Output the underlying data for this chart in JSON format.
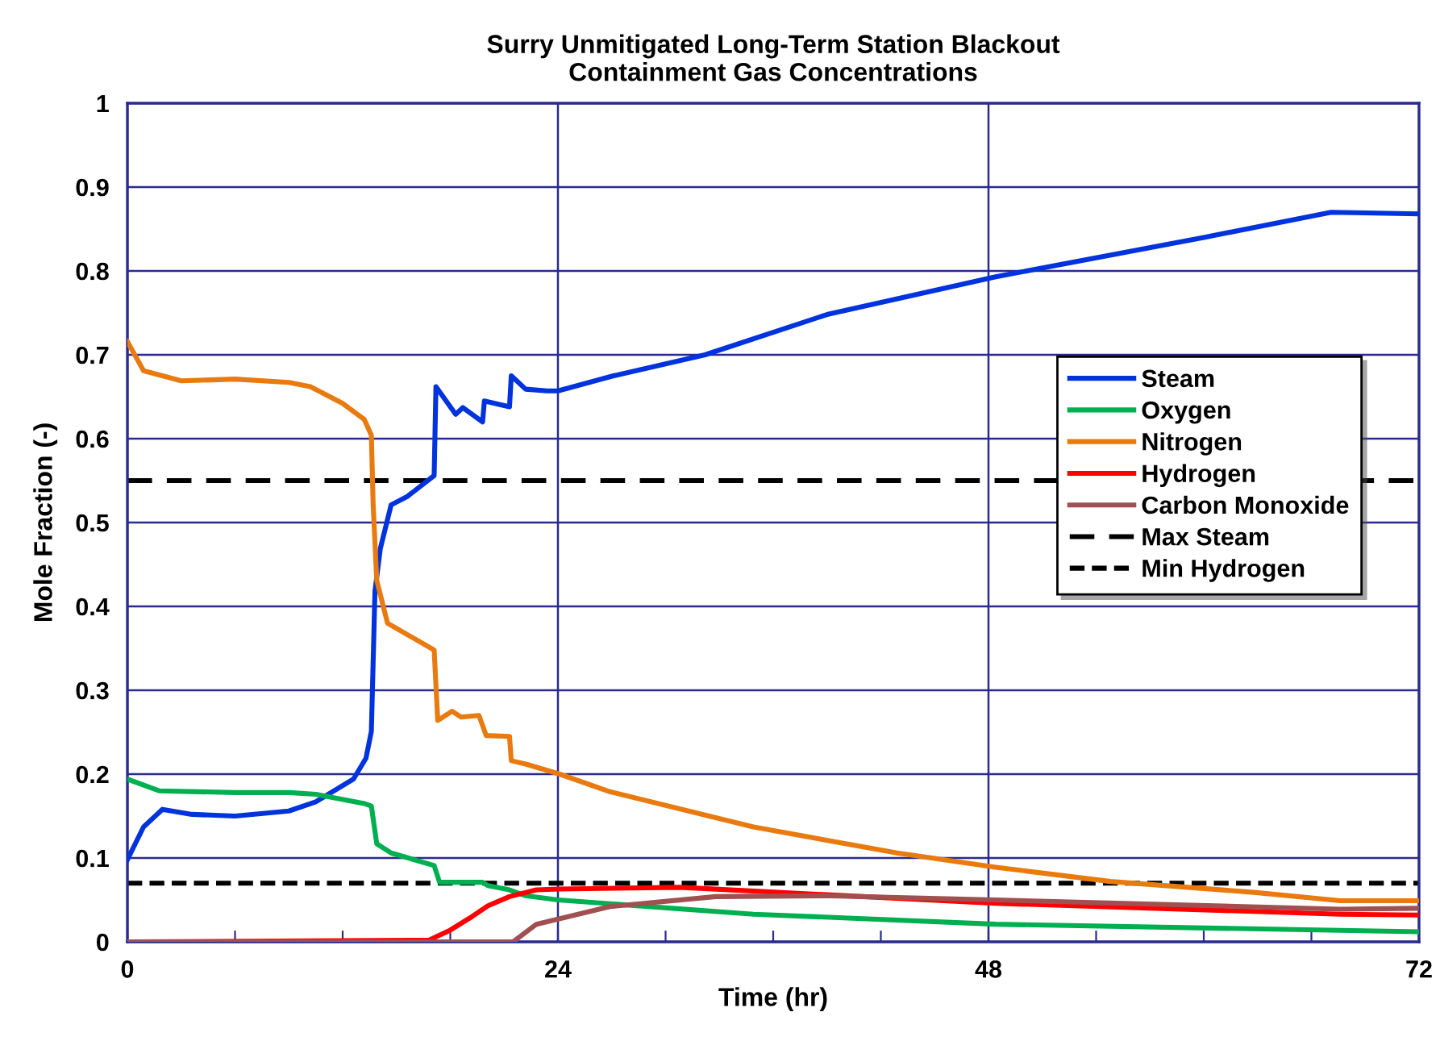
{
  "chart_data": {
    "type": "line",
    "title": "Surry Unmitigated Long-Term Station Blackout\nContainment Gas Concentrations",
    "xlabel": "Time (hr)",
    "ylabel": "Mole Fraction (-)",
    "xlim": [
      0,
      72
    ],
    "ylim": [
      0,
      1
    ],
    "xticks": [
      0,
      {
        "value": 6,
        "label": null
      },
      {
        "value": 12,
        "label": null
      },
      {
        "value": 18,
        "label": null
      },
      24,
      {
        "value": 30,
        "label": null
      },
      {
        "value": 36,
        "label": null
      },
      {
        "value": 42,
        "label": null
      },
      48,
      {
        "value": 54,
        "label": null
      },
      {
        "value": 60,
        "label": null
      },
      {
        "value": 66,
        "label": null
      },
      72
    ],
    "yticks": [
      0,
      0.1,
      0.2,
      0.3,
      0.4,
      0.5,
      0.6,
      0.7,
      0.8,
      0.9,
      1
    ],
    "grid": true,
    "legend": "right",
    "marker": "none",
    "line_style": "solid",
    "series": [
      {
        "name": "Steam",
        "color": "#0033dd",
        "x": [
          0,
          0.9,
          1.95,
          3.6,
          6,
          9,
          10.5,
          12.6,
          13.3,
          13.6,
          13.8,
          14.1,
          14.7,
          15.6,
          17.1,
          17.2,
          18.3,
          18.7,
          19.8,
          19.9,
          21.3,
          21.4,
          22.2,
          23.4,
          24,
          27.1,
          32.2,
          39,
          48.4,
          60,
          67.1,
          72
        ],
        "values": [
          0.098,
          0.137,
          0.158,
          0.152,
          0.15,
          0.156,
          0.167,
          0.194,
          0.219,
          0.251,
          0.418,
          0.469,
          0.521,
          0.531,
          0.556,
          0.662,
          0.629,
          0.637,
          0.62,
          0.645,
          0.638,
          0.675,
          0.659,
          0.657,
          0.657,
          0.675,
          0.7,
          0.748,
          0.793,
          0.84,
          0.87,
          0.868
        ]
      },
      {
        "name": "Oxygen",
        "color": "#00b050",
        "x": [
          0,
          1.8,
          6,
          9,
          10.5,
          13.2,
          13.6,
          13.9,
          14.7,
          17.1,
          17.4,
          19.8,
          20.1,
          21.3,
          22.2,
          24,
          34.9,
          48.4,
          72
        ],
        "values": [
          0.194,
          0.18,
          0.178,
          0.178,
          0.176,
          0.165,
          0.162,
          0.117,
          0.106,
          0.091,
          0.071,
          0.071,
          0.067,
          0.062,
          0.055,
          0.05,
          0.033,
          0.021,
          0.012
        ]
      },
      {
        "name": "Nitrogen",
        "color": "#e87a10",
        "x": [
          0,
          0.9,
          3,
          6,
          9,
          10.2,
          12,
          13.2,
          13.6,
          13.7,
          13.9,
          14.5,
          17.1,
          17.3,
          18.1,
          18.6,
          19.6,
          20,
          21.3,
          21.4,
          22.2,
          24.1,
          26.9,
          34.9,
          42.9,
          48.4,
          54.8,
          62.8,
          67.6,
          72
        ],
        "values": [
          0.716,
          0.681,
          0.669,
          0.671,
          0.667,
          0.662,
          0.642,
          0.623,
          0.604,
          0.521,
          0.431,
          0.38,
          0.348,
          0.264,
          0.275,
          0.268,
          0.27,
          0.246,
          0.245,
          0.216,
          0.212,
          0.2,
          0.179,
          0.137,
          0.106,
          0.089,
          0.072,
          0.059,
          0.049,
          0.049
        ]
      },
      {
        "name": "Hydrogen",
        "color": "#ff0000",
        "x": [
          0,
          16.8,
          18,
          19.2,
          20.1,
          21.3,
          22.8,
          24.1,
          30.8,
          48.4,
          67.6,
          72
        ],
        "values": [
          0,
          0.002,
          0.014,
          0.03,
          0.043,
          0.054,
          0.062,
          0.063,
          0.065,
          0.046,
          0.033,
          0.032
        ]
      },
      {
        "name": "Carbon Monoxide",
        "color": "#a05050",
        "x": [
          0,
          21.5,
          22.8,
          26.9,
          32.8,
          38.8,
          48.4,
          67.6,
          72
        ],
        "values": [
          0,
          0,
          0.021,
          0.042,
          0.054,
          0.055,
          0.05,
          0.039,
          0.04
        ]
      }
    ],
    "ref_lines": [
      {
        "axis": "y",
        "value": 0.55,
        "label": "Max Steam",
        "color": "#000000",
        "line_style": "dashed"
      },
      {
        "axis": "y",
        "value": 0.07,
        "label": "Min Hydrogen",
        "color": "#000000",
        "line_style": "dotted"
      }
    ]
  }
}
